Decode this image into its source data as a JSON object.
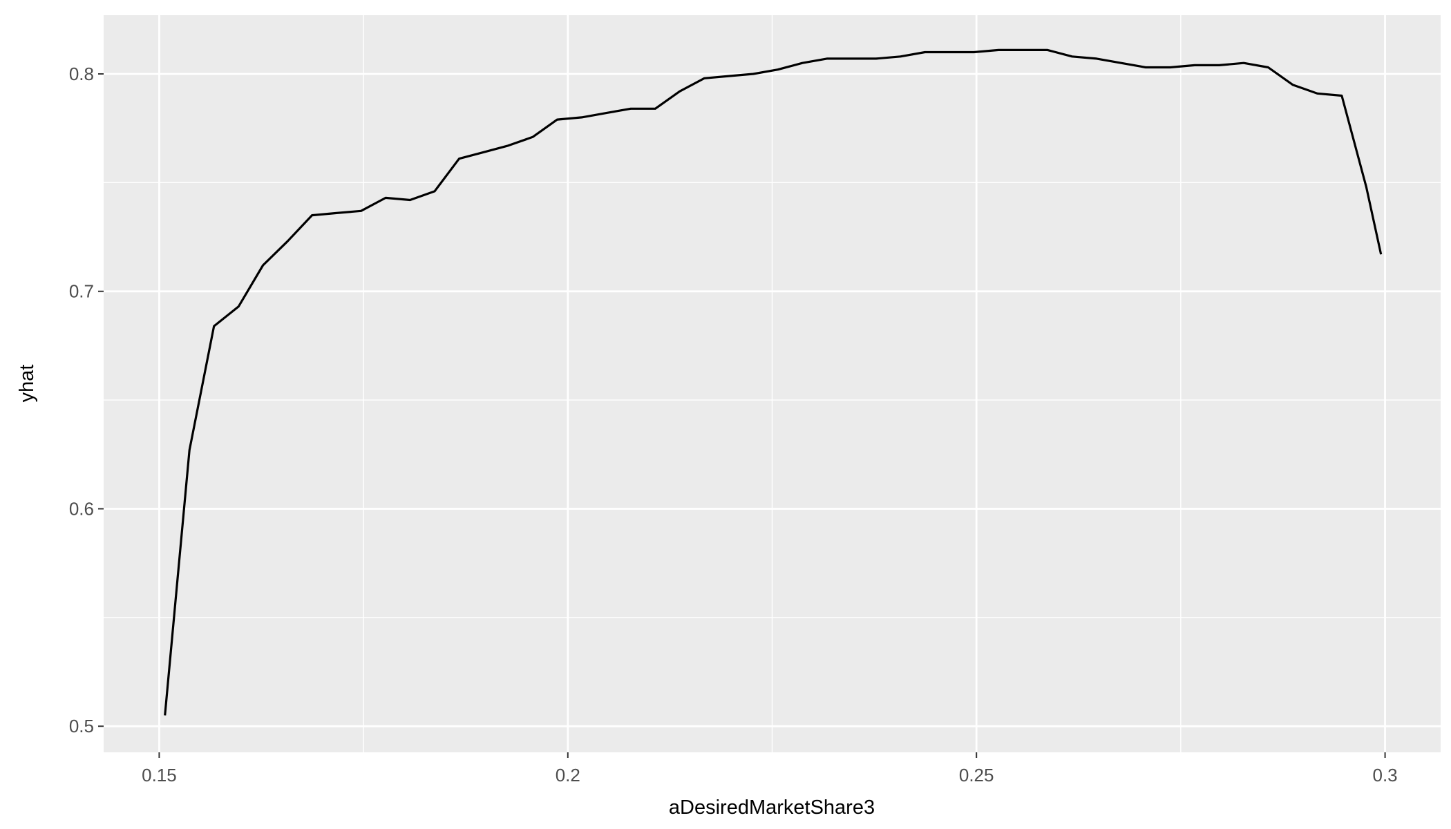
{
  "chart_data": {
    "type": "line",
    "title": "",
    "xlabel": "aDesiredMarketShare3",
    "ylabel": "yhat",
    "xlim": [
      0.1432,
      0.3068
    ],
    "ylim": [
      0.488,
      0.827
    ],
    "x_ticks": [
      0.15,
      0.2,
      0.25,
      0.3
    ],
    "x_tick_labels": [
      "0.15",
      "0.2",
      "0.25",
      "0.3"
    ],
    "y_ticks": [
      0.5,
      0.6,
      0.7,
      0.8
    ],
    "y_tick_labels": [
      "0.5",
      "0.6",
      "0.7",
      "0.8"
    ],
    "x_minor": [
      0.175,
      0.225,
      0.275
    ],
    "y_minor": [
      0.55,
      0.65,
      0.75
    ],
    "grid": true,
    "colors": {
      "panel": "#ebebeb",
      "grid": "#ffffff",
      "line": "#000000",
      "tick": "#333333"
    },
    "series": [
      {
        "x": [
          0.1507,
          0.1537,
          0.1567,
          0.1597,
          0.1627,
          0.1657,
          0.1687,
          0.1717,
          0.1747,
          0.1777,
          0.1807,
          0.1837,
          0.1867,
          0.1897,
          0.1927,
          0.1957,
          0.1987,
          0.2017,
          0.2047,
          0.2077,
          0.2107,
          0.2137,
          0.2167,
          0.2197,
          0.2227,
          0.2257,
          0.2287,
          0.2317,
          0.2347,
          0.2377,
          0.2407,
          0.2437,
          0.2467,
          0.2497,
          0.2527,
          0.2557,
          0.2587,
          0.2617,
          0.2647,
          0.2677,
          0.2707,
          0.2737,
          0.2767,
          0.2797,
          0.2827,
          0.2857,
          0.2887,
          0.2917,
          0.2947,
          0.2977,
          0.2995
        ],
        "values": [
          0.505,
          0.627,
          0.684,
          0.693,
          0.712,
          0.723,
          0.735,
          0.736,
          0.737,
          0.743,
          0.742,
          0.746,
          0.761,
          0.764,
          0.767,
          0.771,
          0.779,
          0.78,
          0.782,
          0.784,
          0.784,
          0.792,
          0.798,
          0.799,
          0.8,
          0.802,
          0.805,
          0.807,
          0.807,
          0.807,
          0.808,
          0.81,
          0.81,
          0.81,
          0.811,
          0.811,
          0.811,
          0.808,
          0.807,
          0.805,
          0.803,
          0.803,
          0.804,
          0.804,
          0.805,
          0.803,
          0.795,
          0.791,
          0.79,
          0.748,
          0.717
        ]
      }
    ]
  }
}
